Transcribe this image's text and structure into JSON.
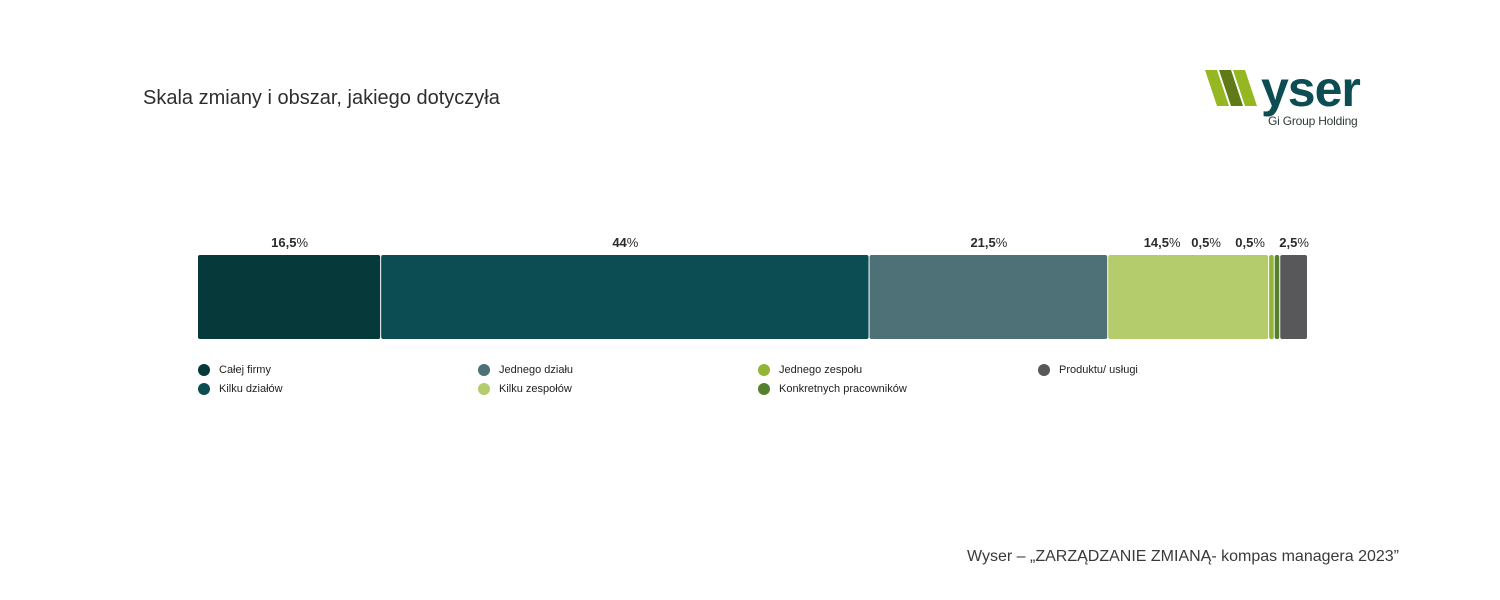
{
  "title": "Skala zmiany i obszar, jakiego dotyczyła",
  "brand": {
    "logo_text": "wyser",
    "tagline": "Gi Group Holding",
    "colors": {
      "lime": "#95b822",
      "lime_dark": "#5f7a17",
      "teal": "#0b4d53"
    }
  },
  "chart_data": {
    "type": "bar",
    "orientation": "horizontal",
    "stacked": true,
    "unit": "%",
    "categories": [
      ""
    ],
    "series": [
      {
        "name": "Całej firmy",
        "values": [
          16.5
        ],
        "label": "16,5",
        "color": "#05393a"
      },
      {
        "name": "Kilku działów",
        "values": [
          44
        ],
        "label": "44",
        "color": "#0b4d53"
      },
      {
        "name": "Jednego działu",
        "values": [
          21.5
        ],
        "label": "21,5",
        "color": "#4d7176"
      },
      {
        "name": "Kilku zespołów",
        "values": [
          14.5
        ],
        "label": "14,5",
        "color": "#b5cc6d"
      },
      {
        "name": "Jednego zespołu",
        "values": [
          0.5
        ],
        "label": "0,5",
        "color": "#93b535"
      },
      {
        "name": "Konkretnych pracowników",
        "values": [
          0.5
        ],
        "label": "0,5",
        "color": "#55812c"
      },
      {
        "name": "Produktu/ usługi",
        "values": [
          2.5
        ],
        "label": "2,5",
        "color": "#58585a"
      }
    ],
    "legend_placement": "bottom",
    "grid": false
  },
  "legend": {
    "order": [
      "Całej firmy",
      "Kilku działów",
      "Jednego działu",
      "Kilku zespołów",
      "Jednego zespołu",
      "Konkretnych pracowników",
      "Produktu/ usługi"
    ]
  },
  "footer": "Wyser – „ZARZĄDZANIE ZMIANĄ- kompas managera 2023”"
}
